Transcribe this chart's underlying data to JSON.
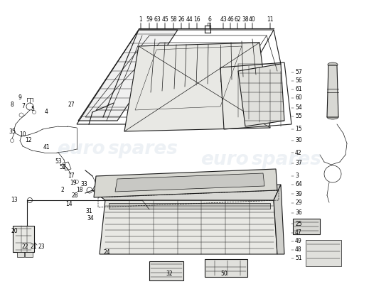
{
  "background_color": "#ffffff",
  "line_color": "#1a1a1a",
  "watermark_color": "#b8c8d8",
  "watermark_alpha": 0.25,
  "label_fontsize": 5.5,
  "label_color": "#000000",
  "top_labels": [
    [
      "1",
      198,
      28
    ],
    [
      "59",
      210,
      28
    ],
    [
      "63",
      221,
      28
    ],
    [
      "45",
      232,
      28
    ],
    [
      "58",
      244,
      28
    ],
    [
      "26",
      255,
      28
    ],
    [
      "44",
      266,
      28
    ],
    [
      "16",
      277,
      28
    ],
    [
      "6",
      295,
      28
    ],
    [
      "43",
      314,
      28
    ],
    [
      "46",
      324,
      28
    ],
    [
      "62",
      334,
      28
    ],
    [
      "38",
      345,
      28
    ],
    [
      "40",
      355,
      28
    ],
    [
      "11",
      380,
      28
    ]
  ],
  "right_labels": [
    [
      "57",
      415,
      102
    ],
    [
      "56",
      415,
      114
    ],
    [
      "61",
      415,
      126
    ],
    [
      "60",
      415,
      138
    ],
    [
      "54",
      415,
      152
    ],
    [
      "55",
      415,
      164
    ],
    [
      "15",
      415,
      182
    ],
    [
      "30",
      415,
      198
    ],
    [
      "42",
      415,
      215
    ],
    [
      "37",
      415,
      230
    ],
    [
      "3",
      415,
      248
    ],
    [
      "64",
      415,
      260
    ],
    [
      "39",
      415,
      273
    ],
    [
      "29",
      415,
      286
    ],
    [
      "36",
      415,
      300
    ],
    [
      "25",
      415,
      315
    ],
    [
      "47",
      415,
      328
    ],
    [
      "49",
      415,
      340
    ],
    [
      "48",
      415,
      352
    ],
    [
      "51",
      415,
      364
    ]
  ],
  "left_labels": [
    [
      "9",
      28,
      138
    ],
    [
      "8",
      17,
      148
    ],
    [
      "7",
      33,
      150
    ],
    [
      "5",
      46,
      153
    ],
    [
      "4",
      65,
      158
    ],
    [
      "35",
      17,
      185
    ],
    [
      "10",
      32,
      190
    ],
    [
      "12",
      40,
      198
    ],
    [
      "41",
      65,
      208
    ],
    [
      "27",
      100,
      148
    ],
    [
      "53",
      82,
      228
    ],
    [
      "52",
      88,
      236
    ],
    [
      "17",
      100,
      248
    ],
    [
      "19",
      103,
      258
    ],
    [
      "2",
      88,
      268
    ],
    [
      "28",
      105,
      275
    ],
    [
      "33",
      118,
      260
    ],
    [
      "18",
      112,
      268
    ],
    [
      "13",
      20,
      282
    ],
    [
      "14",
      97,
      287
    ],
    [
      "31",
      125,
      297
    ],
    [
      "34",
      127,
      308
    ],
    [
      "20",
      20,
      325
    ],
    [
      "22",
      35,
      348
    ],
    [
      "21",
      47,
      348
    ],
    [
      "23",
      58,
      348
    ],
    [
      "24",
      150,
      355
    ]
  ],
  "bottom_labels": [
    [
      "32",
      238,
      385
    ],
    [
      "50",
      315,
      385
    ]
  ]
}
